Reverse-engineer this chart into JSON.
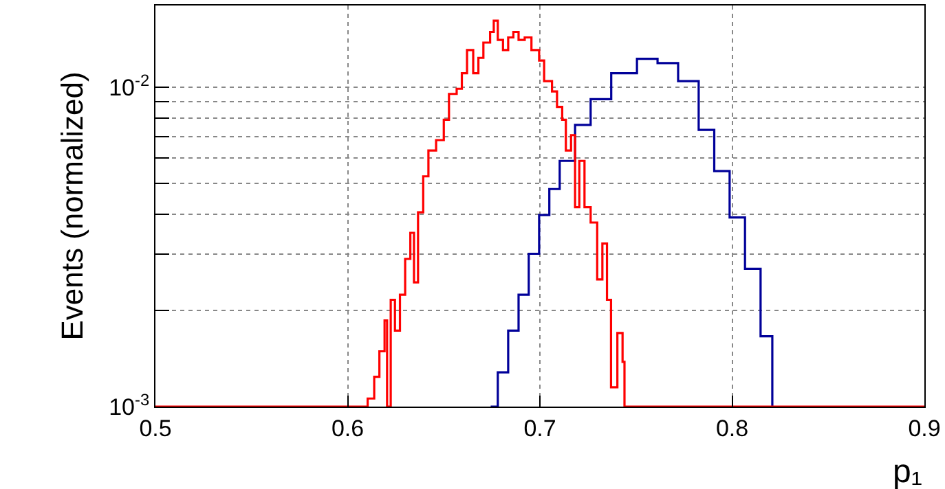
{
  "chart_data": {
    "type": "step",
    "xlabel": "p₁",
    "ylabel": "Events (normalized)",
    "log": "y",
    "grid": true,
    "line_style": "solid",
    "marker": "none",
    "xlim": [
      0.5,
      0.9
    ],
    "xticks": [
      0.5,
      0.6,
      0.7,
      0.8,
      0.9
    ],
    "ylim": [
      0.001,
      0.01803
    ],
    "yticks": [
      {
        "value": 0.001,
        "label": "10$^{-3}$"
      },
      {
        "value": 0.002,
        "label": null
      },
      {
        "value": 0.003,
        "label": null
      },
      {
        "value": 0.004,
        "label": null
      },
      {
        "value": 0.005,
        "label": null
      },
      {
        "value": 0.006,
        "label": null
      },
      {
        "value": 0.007,
        "label": null
      },
      {
        "value": 0.008,
        "label": null
      },
      {
        "value": 0.009,
        "label": null
      },
      {
        "value": 0.01,
        "label": "10$^{-2}$"
      }
    ],
    "series": [
      {
        "color": "#000099",
        "x": [
          0.6744,
          0.6781,
          0.6835,
          0.6889,
          0.6942,
          0.6996,
          0.7049,
          0.7103,
          0.7183,
          0.7264,
          0.7371,
          0.7505,
          0.7612,
          0.7719,
          0.7826,
          0.7907,
          0.7987,
          0.8067,
          0.8148,
          0.8209
        ],
        "values": [
          0.001,
          0.00128,
          0.00173,
          0.00224,
          0.00301,
          0.00398,
          0.0048,
          0.00588,
          0.00762,
          0.00918,
          0.01106,
          0.01227,
          0.0119,
          0.01045,
          0.00735,
          0.00546,
          0.00391,
          0.0027,
          0.00166,
          0.001
        ]
      },
      {
        "color": "#ff0000",
        "x": [
          0.5,
          0.6104,
          0.6138,
          0.6165,
          0.6192,
          0.6205,
          0.6224,
          0.6246,
          0.6272,
          0.6299,
          0.6326,
          0.6345,
          0.6366,
          0.6393,
          0.642,
          0.646,
          0.65,
          0.6527,
          0.6567,
          0.6594,
          0.6621,
          0.6653,
          0.668,
          0.6706,
          0.6741,
          0.676,
          0.6781,
          0.6808,
          0.6835,
          0.6862,
          0.6889,
          0.6921,
          0.6956,
          0.6996,
          0.7022,
          0.7063,
          0.7089,
          0.7116,
          0.7135,
          0.7162,
          0.7183,
          0.7205,
          0.7232,
          0.7264,
          0.7298,
          0.7325,
          0.7349,
          0.737,
          0.7403,
          0.743,
          0.744,
          0.9
        ],
        "values": [
          0.001,
          0.00106,
          0.00124,
          0.00149,
          0.00186,
          0.001,
          0.00216,
          0.00173,
          0.00224,
          0.0029,
          0.0035,
          0.00245,
          0.00406,
          0.00526,
          0.00634,
          0.00683,
          0.00791,
          0.00953,
          0.00989,
          0.01106,
          0.01307,
          0.01106,
          0.01236,
          0.0138,
          0.0149,
          0.01616,
          0.01406,
          0.01307,
          0.01432,
          0.0149,
          0.01406,
          0.01432,
          0.01307,
          0.01213,
          0.01045,
          0.0097,
          0.00868,
          0.00791,
          0.00634,
          0.00708,
          0.00421,
          0.00588,
          0.00421,
          0.00377,
          0.0025,
          0.00324,
          0.00216,
          0.00115,
          0.0017,
          0.00138,
          0.001,
          0.001
        ]
      }
    ]
  }
}
